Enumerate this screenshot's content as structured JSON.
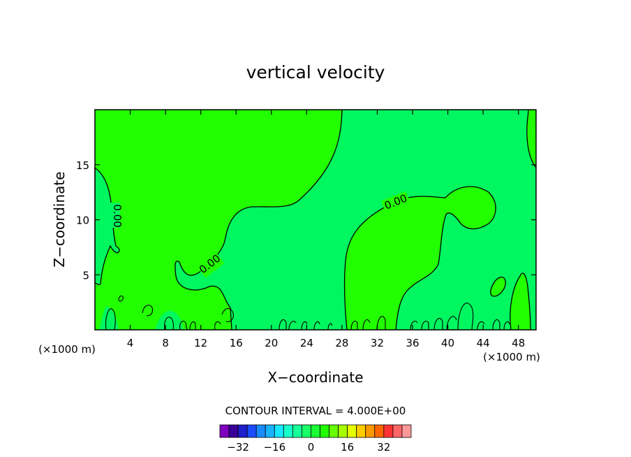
{
  "chart_data": {
    "type": "heatmap",
    "title": "vertical velocity",
    "xlabel": "X−coordinate",
    "ylabel": "Z−coordinate",
    "x_unit_left": "(×1000 m)",
    "x_unit_right": "(×1000 m)",
    "xlim": [
      0,
      50
    ],
    "ylim": [
      0,
      20
    ],
    "x_ticks": [
      4,
      8,
      12,
      16,
      20,
      24,
      28,
      32,
      36,
      40,
      44,
      48
    ],
    "x_tick_labels": [
      "4",
      "8",
      "12",
      "16",
      "20",
      "24",
      "28",
      "32",
      "36",
      "40",
      "44",
      "48"
    ],
    "y_ticks": [
      5,
      10,
      15
    ],
    "y_tick_labels": [
      "5",
      "10",
      "15"
    ],
    "contour_label": "0.00",
    "contour_interval_text": "CONTOUR INTERVAL = 4.000E+00",
    "colorbar": {
      "colors": [
        "#7f00c0",
        "#3a0099",
        "#1f1fcc",
        "#1a4dff",
        "#1a8cff",
        "#1ab3ff",
        "#1ae6ff",
        "#19ffcc",
        "#19ff99",
        "#19ff66",
        "#19ff33",
        "#22ff00",
        "#66ff00",
        "#a6ff00",
        "#e6ff00",
        "#ffcc00",
        "#ff9900",
        "#ff6600",
        "#ff3333",
        "#ff6666",
        "#ff9999"
      ],
      "tick_values": [
        -32,
        -16,
        0,
        16,
        32
      ],
      "tick_labels": [
        "−32",
        "−16",
        "0",
        "16",
        "32"
      ]
    },
    "region_colors": {
      "positive": "#22ff00",
      "negative": "#00f75f"
    }
  }
}
